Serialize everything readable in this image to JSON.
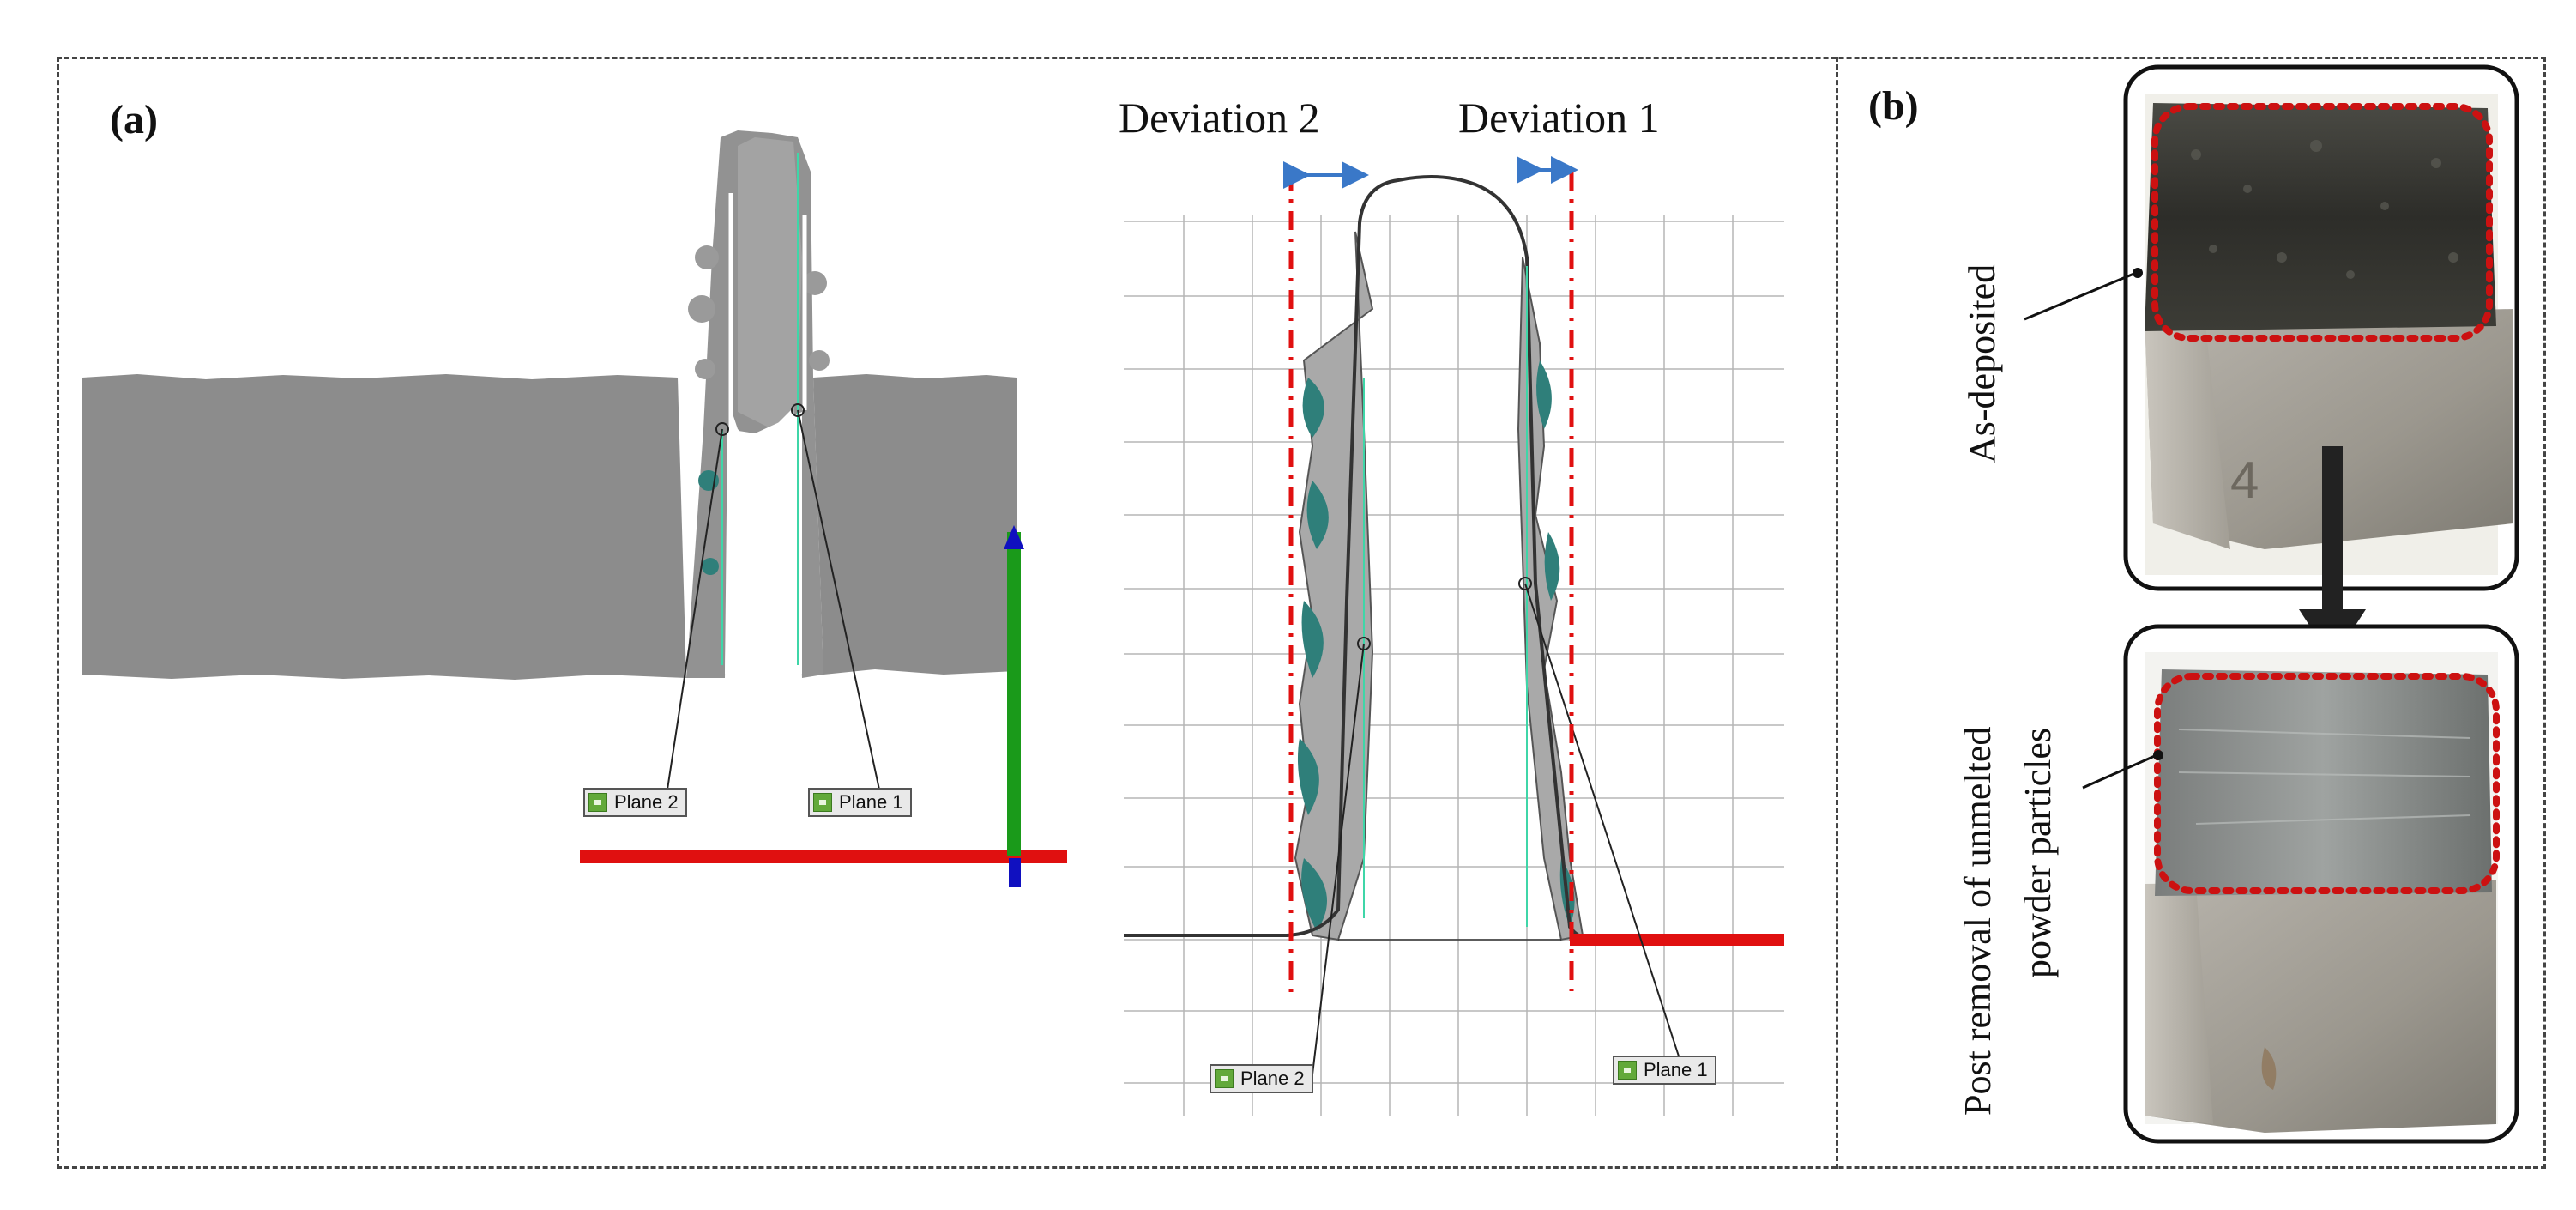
{
  "panels": {
    "a": {
      "label": "(a)",
      "deviation_left": "Deviation 2",
      "deviation_right": "Deviation 1",
      "plane_tags_3d": [
        "Plane 2",
        "Plane 1"
      ],
      "plane_tags_profile": [
        "Plane 2",
        "Plane 1"
      ]
    },
    "b": {
      "label": "(b)",
      "top_caption": "As-deposited",
      "bottom_caption_line1": "Post removal of unmelted",
      "bottom_caption_line2": "powder particles"
    }
  },
  "colors": {
    "mesh_gray": "#8c8c8c",
    "deviation_teal": "#2f7f7a",
    "axis_red": "#e01010",
    "axis_green": "#1a9a1a",
    "axis_blue": "#1010c0",
    "arrow_blue": "#3a78c8",
    "dotted_red": "#cc1111"
  },
  "icons": [
    "checkbox-icon",
    "plane-marker-icon",
    "down-arrow-icon"
  ]
}
